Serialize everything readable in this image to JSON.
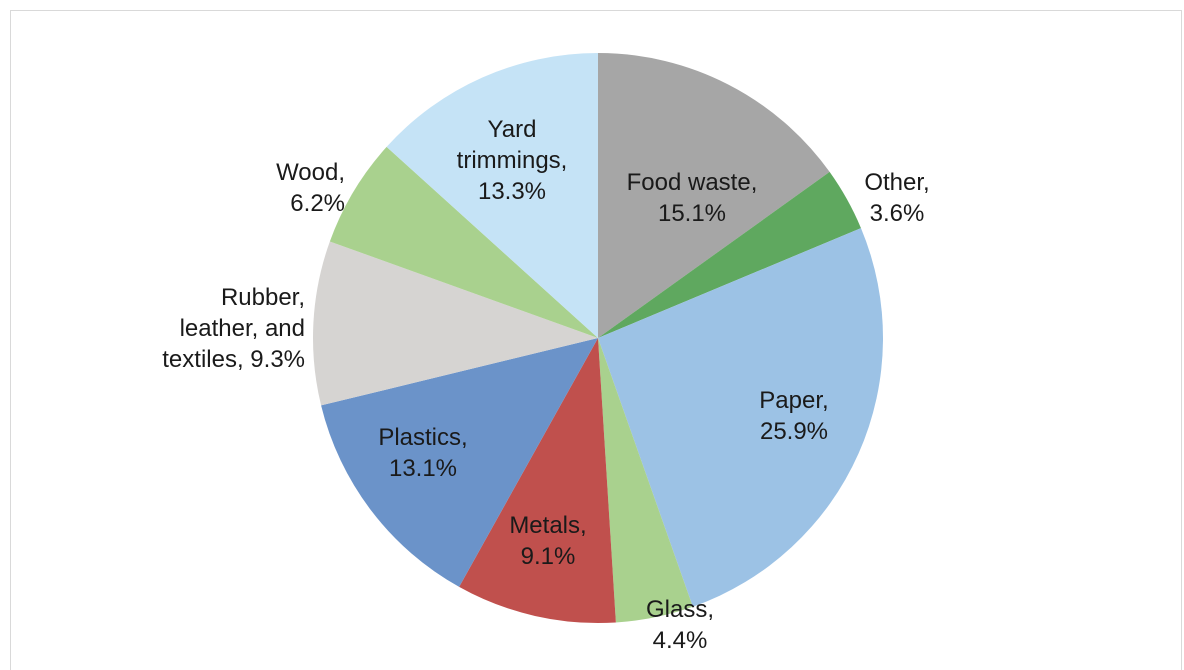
{
  "chart_data": {
    "type": "pie",
    "title": "",
    "slices": [
      {
        "label": "Food waste",
        "value": 15.1,
        "label_lines": [
          "Food waste,",
          "15.1%"
        ],
        "color": "#a6a6a6"
      },
      {
        "label": "Other",
        "value": 3.6,
        "label_lines": [
          "Other,",
          "3.6%"
        ],
        "color": "#5fa85f"
      },
      {
        "label": "Paper",
        "value": 25.9,
        "label_lines": [
          "Paper,",
          "25.9%"
        ],
        "color": "#9cc2e5"
      },
      {
        "label": "Glass",
        "value": 4.4,
        "label_lines": [
          "Glass,",
          "4.4%"
        ],
        "color": "#a9d18e"
      },
      {
        "label": "Metals",
        "value": 9.1,
        "label_lines": [
          "Metals,",
          "9.1%"
        ],
        "color": "#c0504d"
      },
      {
        "label": "Plastics",
        "value": 13.1,
        "label_lines": [
          "Plastics,",
          "13.1%"
        ],
        "color": "#6b93c9"
      },
      {
        "label": "Rubber, leather, and textiles",
        "value": 9.3,
        "label_lines": [
          "Rubber,",
          "leather, and",
          "textiles, 9.3%"
        ],
        "color": "#d6d4d2"
      },
      {
        "label": "Wood",
        "value": 6.2,
        "label_lines": [
          "Wood,",
          "6.2%"
        ],
        "color": "#a9d18e"
      },
      {
        "label": "Yard trimmings",
        "value": 13.3,
        "label_lines": [
          "Yard",
          "trimmings,",
          "13.3%"
        ],
        "color": "#c5e3f6"
      }
    ],
    "start_angle_deg": 0,
    "direction": "clockwise",
    "legend": "none",
    "labels": "data labels on and beside slices"
  }
}
